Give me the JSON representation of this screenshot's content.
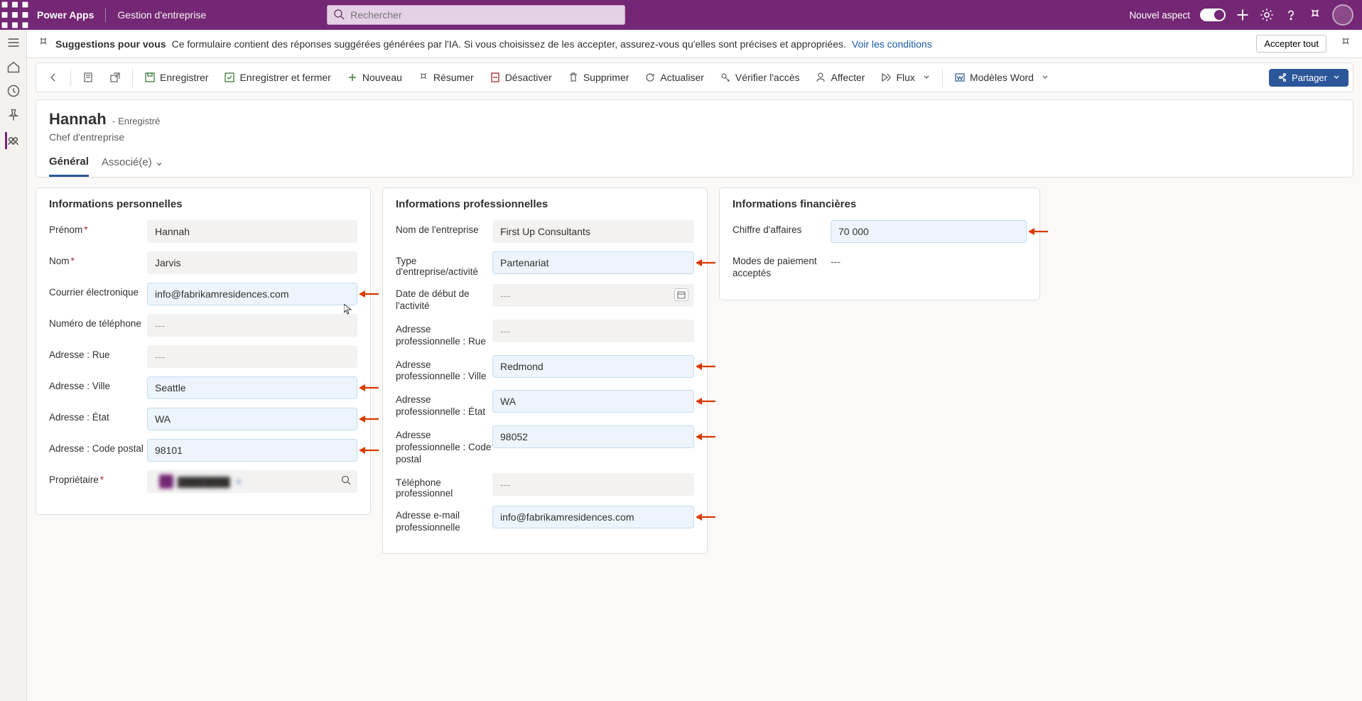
{
  "colors": {
    "purple": "#742774",
    "blue": "#2b579a",
    "hl_bg": "#edf4fb",
    "hl_border": "#c4ddf2",
    "arrow": "#d83b01"
  },
  "topbar": {
    "app": "Power Apps",
    "env": "Gestion d'entreprise",
    "search_placeholder": "Rechercher",
    "new_look": "Nouvel aspect"
  },
  "suggest": {
    "title": "Suggestions pour vous",
    "text": "Ce formulaire contient des réponses suggérées générées par l'IA. Si vous choisissez de les accepter, assurez-vous qu'elles sont précises et appropriées.",
    "link": "Voir les conditions",
    "accept": "Accepter tout"
  },
  "cmd": {
    "save": "Enregistrer",
    "saveclose": "Enregistrer et fermer",
    "new": "Nouveau",
    "summarize": "Résumer",
    "deactivate": "Désactiver",
    "delete": "Supprimer",
    "refresh": "Actualiser",
    "checkaccess": "Vérifier l'accès",
    "assign": "Affecter",
    "flow": "Flux",
    "wordtpl": "Modèles Word",
    "share": "Partager"
  },
  "record": {
    "name": "Hannah",
    "saved": "- Enregistré",
    "sub": "Chef d'entreprise",
    "tab_general": "Général",
    "tab_related": "Associé(e)"
  },
  "sections": {
    "personal": {
      "title": "Informations personnelles",
      "fields": {
        "prenom": {
          "label": "Prénom",
          "value": "Hannah",
          "required": true,
          "hl": false
        },
        "nom": {
          "label": "Nom",
          "value": "Jarvis",
          "required": true,
          "hl": false
        },
        "email": {
          "label": "Courrier électronique",
          "value": "info@fabrikamresidences.com",
          "hl": true,
          "arrow": true
        },
        "phone": {
          "label": "Numéro de téléphone",
          "value": "---",
          "empty": true
        },
        "street": {
          "label": "Adresse : Rue",
          "value": "---",
          "empty": true
        },
        "city": {
          "label": "Adresse : Ville",
          "value": "Seattle",
          "hl": true,
          "arrow": true
        },
        "state": {
          "label": "Adresse : État",
          "value": "WA",
          "hl": true,
          "arrow": true
        },
        "zip": {
          "label": "Adresse : Code postal",
          "value": "98101",
          "hl": true,
          "arrow": true
        },
        "owner": {
          "label": "Propriétaire",
          "required": true,
          "chip": "redacted user"
        }
      }
    },
    "pro": {
      "title": "Informations professionnelles",
      "fields": {
        "company": {
          "label": "Nom de l'entreprise",
          "value": "First Up Consultants"
        },
        "btype": {
          "label": "Type d'entreprise/activité",
          "value": "Partenariat",
          "hl": true,
          "arrow": true
        },
        "start": {
          "label": "Date de début de l'activité",
          "value": "---",
          "empty": true,
          "calendar": true,
          "multiline": true
        },
        "bstreet": {
          "label": "Adresse professionnelle : Rue",
          "value": "---",
          "empty": true,
          "multiline": true
        },
        "bcity": {
          "label": "Adresse professionnelle : Ville",
          "value": "Redmond",
          "hl": true,
          "arrow": true,
          "multiline": true
        },
        "bstate": {
          "label": "Adresse professionnelle : État",
          "value": "WA",
          "hl": true,
          "arrow": true,
          "multiline": true
        },
        "bzip": {
          "label": "Adresse professionnelle : Code postal",
          "value": "98052",
          "hl": true,
          "arrow": true,
          "multiline": true
        },
        "bphone": {
          "label": "Téléphone professionnel",
          "value": "---",
          "empty": true
        },
        "bemail": {
          "label": "Adresse e-mail professionnelle",
          "value": "info@fabrikamresidences.com",
          "hl": true,
          "arrow": true,
          "multiline": true
        }
      }
    },
    "fin": {
      "title": "Informations financières",
      "fields": {
        "revenue": {
          "label": "Chiffre d'affaires",
          "value": "70 000",
          "hl": true,
          "arrow": true
        },
        "payment": {
          "label": "Modes de paiement acceptés",
          "value": "---",
          "empty": true,
          "bare": true,
          "multiline": true
        }
      }
    }
  }
}
